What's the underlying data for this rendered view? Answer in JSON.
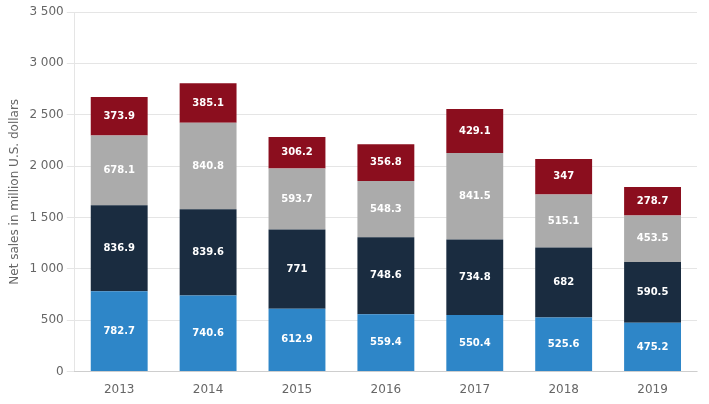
{
  "chart_data": {
    "type": "bar",
    "stacked": true,
    "ylabel": "Net sales in million U.S. dollars",
    "categories": [
      "2013",
      "2014",
      "2015",
      "2016",
      "2017",
      "2018",
      "2019"
    ],
    "series": [
      {
        "color": "#2E86C8",
        "values": [
          782.7,
          740.6,
          612.9,
          559.4,
          550.4,
          525.6,
          475.2
        ]
      },
      {
        "color": "#1A2C40",
        "values": [
          836.9,
          839.6,
          771.0,
          748.6,
          734.8,
          682.0,
          590.5
        ]
      },
      {
        "color": "#ABABAB",
        "values": [
          678.1,
          840.8,
          593.7,
          548.3,
          841.5,
          515.1,
          453.5
        ]
      },
      {
        "color": "#8B0E1E",
        "values": [
          373.9,
          385.1,
          306.2,
          356.8,
          429.1,
          347.0,
          278.7
        ]
      }
    ],
    "ylim": [
      0,
      3500
    ],
    "yticks": [
      0,
      500,
      {
        "value": 1000,
        "label": "1 000"
      },
      {
        "value": 1500,
        "label": "1 500"
      },
      {
        "value": 2000,
        "label": "2 000"
      },
      {
        "value": 2500,
        "label": "2 500"
      },
      {
        "value": 3000,
        "label": "3 000"
      },
      {
        "value": 3500,
        "label": "3 500"
      }
    ],
    "grid": true,
    "data_labels": true
  }
}
